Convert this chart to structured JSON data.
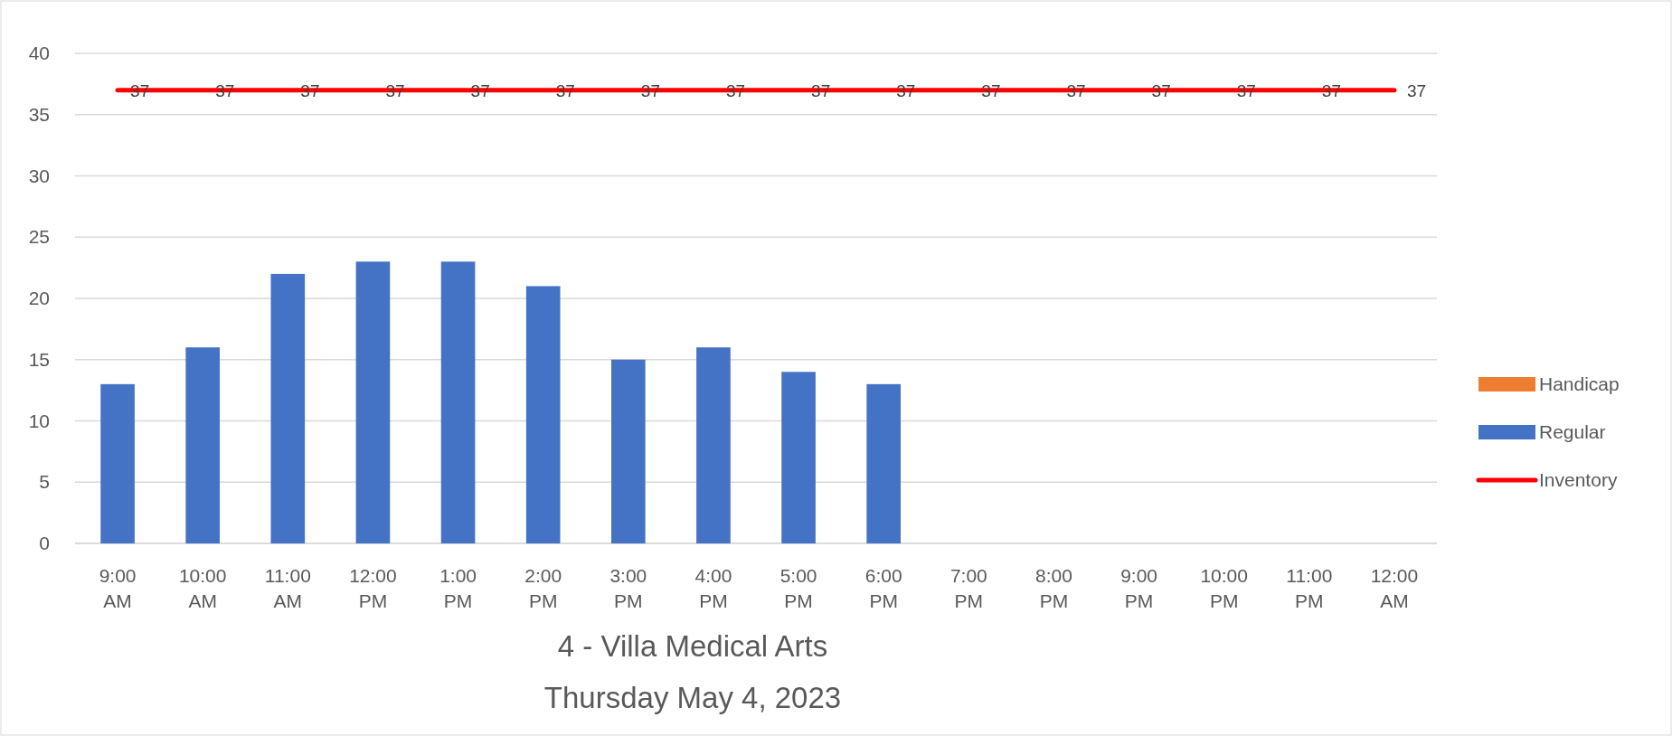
{
  "chart_data": {
    "type": "bar",
    "title": "4 - Villa Medical Arts",
    "subtitle": "Thursday May 4, 2023",
    "categories": [
      "9:00 AM",
      "10:00 AM",
      "11:00 AM",
      "12:00 PM",
      "1:00 PM",
      "2:00 PM",
      "3:00 PM",
      "4:00 PM",
      "5:00 PM",
      "6:00 PM",
      "7:00 PM",
      "8:00 PM",
      "9:00 PM",
      "10:00 PM",
      "11:00 PM",
      "12:00 AM"
    ],
    "series": [
      {
        "name": "Handicap",
        "color": "#ed7d31",
        "values": [
          null,
          null,
          null,
          null,
          null,
          null,
          null,
          null,
          null,
          null,
          null,
          null,
          null,
          null,
          null,
          null
        ]
      },
      {
        "name": "Regular",
        "color": "#4472c4",
        "values": [
          13,
          16,
          22,
          23,
          23,
          21,
          15,
          16,
          14,
          13,
          null,
          null,
          null,
          null,
          null,
          null
        ]
      },
      {
        "name": "Inventory",
        "type": "line",
        "color": "#ff0000",
        "values": [
          37,
          37,
          37,
          37,
          37,
          37,
          37,
          37,
          37,
          37,
          37,
          37,
          37,
          37,
          37,
          37
        ],
        "value_labels": [
          "37",
          "37",
          "37",
          "37",
          "37",
          "37",
          "37",
          "37",
          "37",
          "37",
          "37",
          "37",
          "37",
          "37",
          "37",
          "37"
        ]
      }
    ],
    "ylim": [
      0,
      40
    ],
    "yticks": [
      0,
      5,
      10,
      15,
      20,
      25,
      30,
      35,
      40
    ],
    "grid": "y",
    "legend": "right"
  }
}
